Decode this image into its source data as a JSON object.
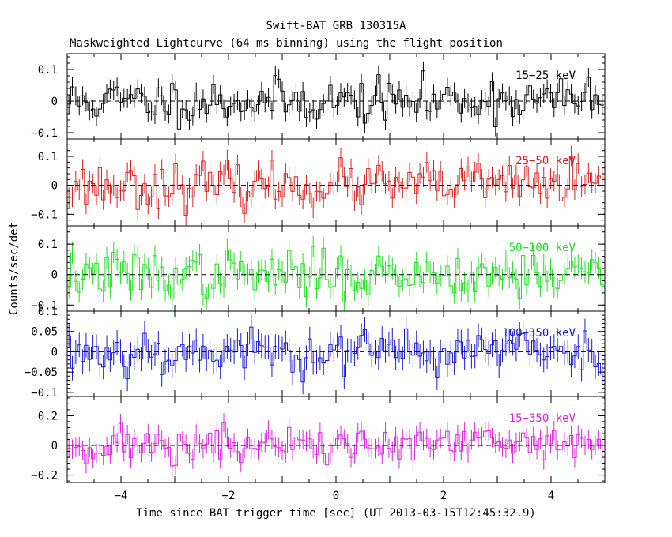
{
  "chart_data": {
    "type": "line",
    "style": "step-with-error-bars",
    "title": "Swift-BAT GRB 130315A",
    "subtitle": "Maskweighted Lightcurve (64 ms binning) using the flight position",
    "xlabel": "Time since BAT trigger time [sec] (UT 2013-03-15T12:45:32.9)",
    "ylabel": "Counts/sec/det",
    "xlim": [
      -5,
      5
    ],
    "xticks": [
      -4,
      -2,
      0,
      2,
      4
    ],
    "xtick_labels": [
      "−4",
      "−2",
      "0",
      "2",
      "4"
    ],
    "bin_width_sec": 0.064,
    "panels": [
      {
        "name": "15-25 keV",
        "label": "15−25 keV",
        "color": "#000000",
        "ylim": [
          -0.12,
          0.15
        ],
        "yticks": [
          -0.1,
          0,
          0.1
        ],
        "ytick_labels": [
          "−0.1",
          "0",
          "0.1"
        ],
        "noise_sigma": 0.035,
        "err": 0.03,
        "seed": 11
      },
      {
        "name": "25-50 keV",
        "label": "25−50 keV",
        "color": "#d42020",
        "ylim": [
          -0.14,
          0.16
        ],
        "yticks": [
          -0.1,
          0,
          0.1
        ],
        "ytick_labels": [
          "−0.1",
          "0",
          "0.1"
        ],
        "noise_sigma": 0.038,
        "err": 0.035,
        "seed": 23
      },
      {
        "name": "50-100 keV",
        "label": "50−100 keV",
        "color": "#22dd22",
        "ylim": [
          -0.12,
          0.16
        ],
        "yticks": [
          -0.1,
          0,
          0.1
        ],
        "ytick_labels": [
          "−0.1",
          "0",
          "0.1"
        ],
        "noise_sigma": 0.038,
        "err": 0.035,
        "seed": 37
      },
      {
        "name": "100-350 keV",
        "label": "100−350 keV",
        "color": "#1a1acc",
        "ylim": [
          -0.11,
          0.1
        ],
        "yticks": [
          -0.1,
          -0.05,
          0,
          0.05,
          0.1
        ],
        "ytick_labels": [
          "−0.1",
          "−0.05",
          "0",
          "0.05",
          "0.1"
        ],
        "noise_sigma": 0.028,
        "err": 0.03,
        "seed": 53
      },
      {
        "name": "15-350 keV",
        "label": "15−350 keV",
        "color": "#dd22dd",
        "ylim": [
          -0.25,
          0.33
        ],
        "yticks": [
          -0.2,
          0,
          0.2
        ],
        "ytick_labels": [
          "−0.2",
          "0",
          "0.2"
        ],
        "noise_sigma": 0.065,
        "err": 0.065,
        "seed": 71
      }
    ]
  }
}
